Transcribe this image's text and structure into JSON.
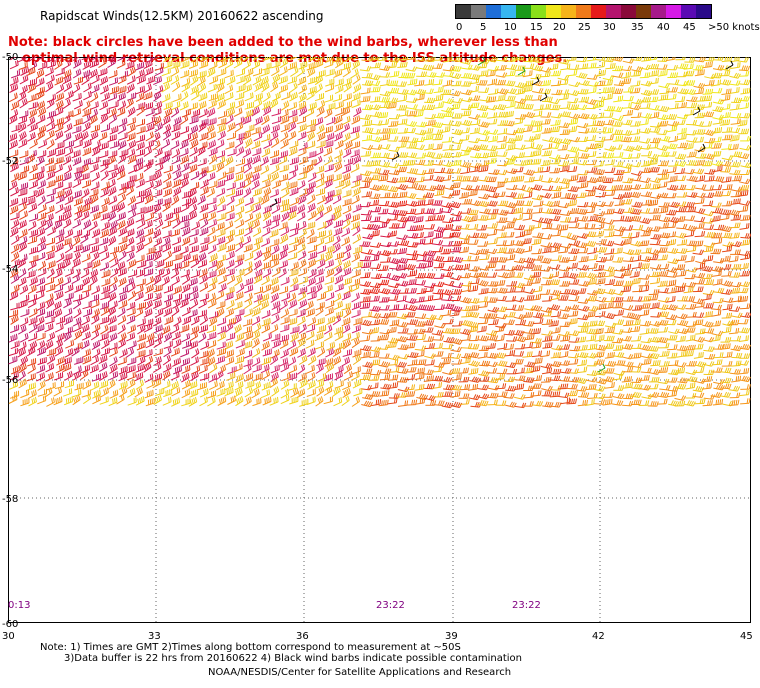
{
  "title": "Rapidscat Winds(12.5KM) 20160622 ascending",
  "note_line1": "Note: black circles have been added to the wind barbs, wherever less than",
  "note_line2": "optimal wind retrieval conditions are met due to the ISS altitude changes.",
  "legend": {
    "labels": [
      "0",
      "5",
      "10",
      "15",
      "20",
      "25",
      "30",
      "35",
      "40",
      "45",
      ">50 knots"
    ],
    "colors": [
      "#3a3a3a",
      "#7a7a7a",
      "#1e6ed8",
      "#37b6f0",
      "#1a9a1a",
      "#8ae01a",
      "#f0e61a",
      "#f6b41a",
      "#f07a1a",
      "#e61a1a",
      "#b4146e",
      "#8a0a3a",
      "#7a3a0a",
      "#a61a8a",
      "#d61ae6",
      "#5a0ab4",
      "#2a0a8a"
    ]
  },
  "x_axis": {
    "ticks": [
      "30",
      "33",
      "36",
      "39",
      "42",
      "45"
    ]
  },
  "y_axis": {
    "ticks": [
      "-50",
      "-52",
      "-54",
      "-56",
      "-58",
      "-60"
    ]
  },
  "time_labels": [
    "0:13",
    "23:22",
    "23:22"
  ],
  "footnote_line1": "Note: 1) Times are GMT 2)Times along bottom correspond to measurement at ~50S",
  "footnote_line2": "3)Data buffer is 22 hrs from 20160622 4) Black wind barbs indicate possible contamination",
  "footer": "NOAA/NESDIS/Center for Satellite Applications and Research"
}
